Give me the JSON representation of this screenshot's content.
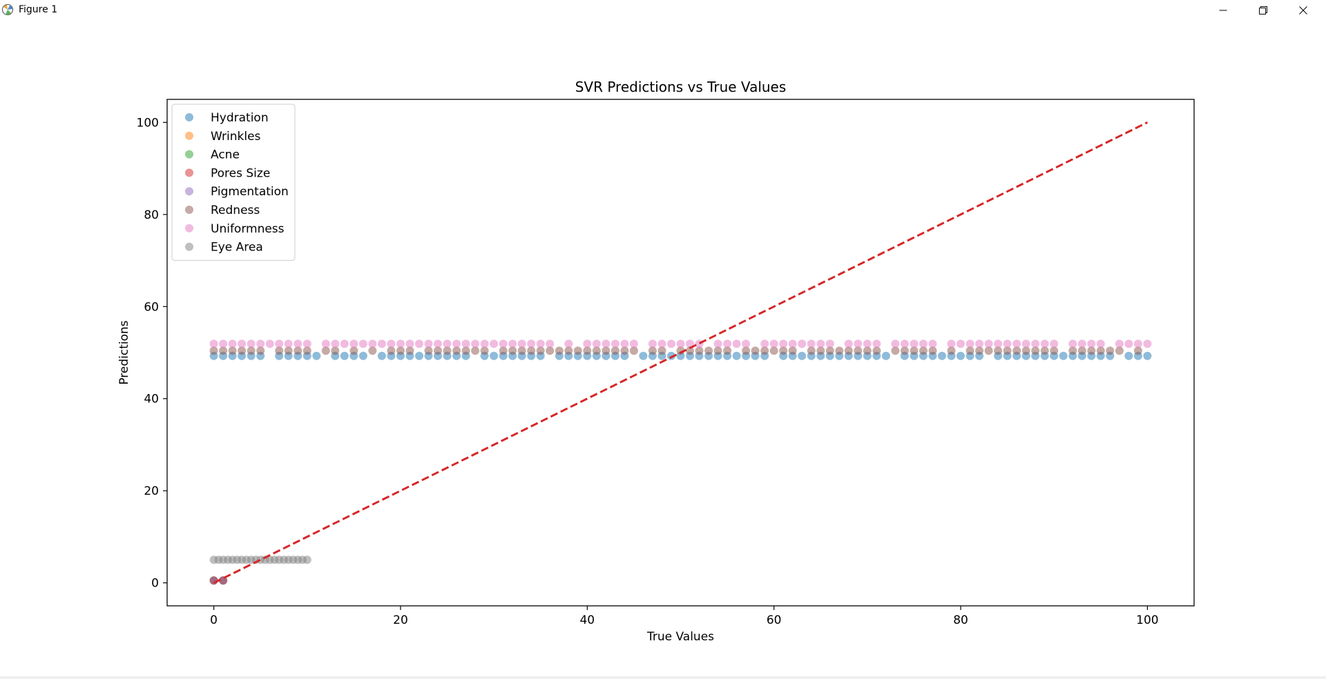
{
  "window": {
    "title": "Figure 1",
    "icons": {
      "app": "matplotlib-icon",
      "minimize": "minimize-icon",
      "maximize": "maximize-icon",
      "close": "close-icon"
    }
  },
  "chart_data": {
    "type": "scatter",
    "title": "SVR Predictions vs True Values",
    "xlabel": "True Values",
    "ylabel": "Predictions",
    "xlim": [
      -5,
      105
    ],
    "ylim": [
      -5,
      105
    ],
    "xticks": [
      0,
      20,
      40,
      60,
      80,
      100
    ],
    "yticks": [
      0,
      20,
      40,
      60,
      80,
      100
    ],
    "legend_position": "top-left",
    "grid": false,
    "series": [
      {
        "name": "Hydration",
        "color": "#1f77b4",
        "x": [
          0,
          1,
          2,
          3,
          4,
          5,
          7,
          8,
          9,
          10,
          11,
          13,
          14,
          15,
          16,
          18,
          19,
          20,
          21,
          22,
          23,
          24,
          25,
          26,
          27,
          29,
          30,
          31,
          32,
          33,
          34,
          35,
          37,
          38,
          39,
          40,
          41,
          42,
          43,
          44,
          46,
          47,
          48,
          49,
          50,
          51,
          52,
          53,
          54,
          55,
          56,
          57,
          58,
          59,
          61,
          62,
          63,
          64,
          65,
          66,
          67,
          68,
          69,
          70,
          71,
          72,
          74,
          75,
          76,
          77,
          78,
          79,
          80,
          81,
          82,
          84,
          85,
          86,
          87,
          88,
          89,
          90,
          91,
          92,
          93,
          94,
          95,
          96,
          98,
          99,
          100
        ],
        "y": 49.3
      },
      {
        "name": "Wrinkles",
        "color": "#ff7f0e",
        "x": [
          0,
          1
        ],
        "y": [
          0.5,
          0.5
        ]
      },
      {
        "name": "Acne",
        "color": "#2ca02c",
        "x": [
          0,
          1
        ],
        "y": [
          0.5,
          0.5
        ]
      },
      {
        "name": "Pores Size",
        "color": "#d62728",
        "x": [
          0,
          1
        ],
        "y": [
          0.5,
          0.5
        ]
      },
      {
        "name": "Pigmentation",
        "color": "#9467bd",
        "x": [
          0,
          1
        ],
        "y": [
          0.5,
          0.5
        ]
      },
      {
        "name": "Redness",
        "color": "#8c564b",
        "x": [
          0,
          1,
          2,
          3,
          4,
          5,
          7,
          8,
          9,
          10,
          12,
          13,
          15,
          17,
          19,
          20,
          21,
          23,
          24,
          25,
          26,
          27,
          28,
          29,
          31,
          32,
          33,
          34,
          35,
          36,
          37,
          38,
          39,
          40,
          41,
          42,
          43,
          44,
          45,
          47,
          48,
          50,
          51,
          52,
          53,
          54,
          55,
          57,
          58,
          59,
          60,
          61,
          62,
          64,
          65,
          66,
          67,
          68,
          69,
          70,
          71,
          73,
          74,
          75,
          76,
          77,
          79,
          81,
          82,
          83,
          84,
          85,
          86,
          87,
          88,
          89,
          90,
          92,
          93,
          94,
          95,
          96,
          97,
          99
        ],
        "y": 50.4
      },
      {
        "name": "Uniformness",
        "color": "#e377c2",
        "x": [
          0,
          1,
          2,
          3,
          4,
          5,
          6,
          7,
          8,
          9,
          10,
          12,
          13,
          14,
          15,
          16,
          17,
          18,
          19,
          20,
          21,
          22,
          23,
          24,
          25,
          26,
          27,
          28,
          29,
          30,
          31,
          32,
          33,
          34,
          35,
          36,
          38,
          40,
          41,
          42,
          43,
          44,
          45,
          47,
          48,
          49,
          50,
          51,
          52,
          54,
          55,
          56,
          57,
          59,
          60,
          61,
          62,
          63,
          64,
          65,
          66,
          68,
          69,
          70,
          71,
          73,
          74,
          75,
          76,
          77,
          79,
          80,
          81,
          82,
          83,
          84,
          85,
          86,
          87,
          88,
          89,
          90,
          92,
          93,
          94,
          95,
          97,
          98,
          99,
          100
        ],
        "y": 51.9
      },
      {
        "name": "Eye Area",
        "color": "#7f7f7f",
        "x": [
          0,
          0.5,
          1,
          1.5,
          2,
          2.5,
          3,
          3.5,
          4,
          4.5,
          5,
          5.5,
          6,
          6.5,
          7,
          7.5,
          8,
          8.5,
          9,
          9.5,
          10
        ],
        "y": 5.0
      }
    ],
    "reference_line": {
      "x": [
        0,
        100
      ],
      "y": [
        0,
        100
      ],
      "color": "#d62728",
      "style": "dashed"
    }
  }
}
